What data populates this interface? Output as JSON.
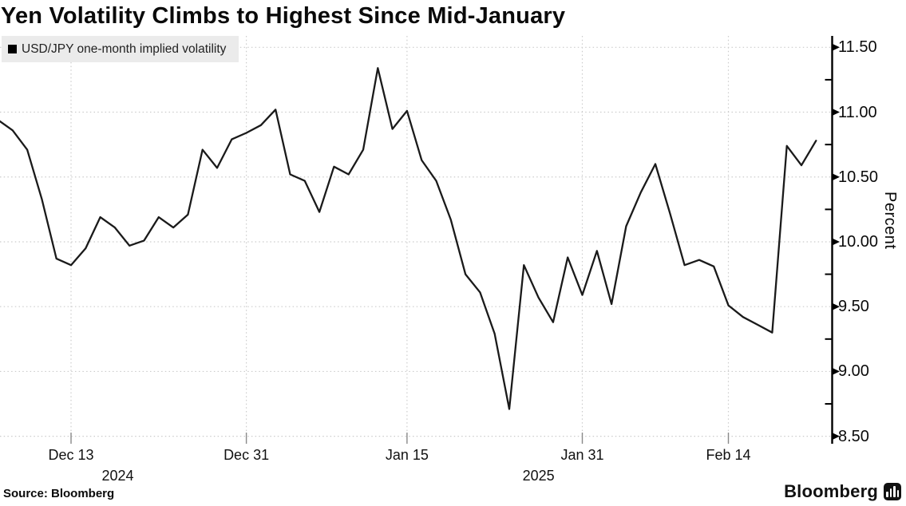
{
  "title": "Yen Volatility Climbs to Highest Since Mid-January",
  "legend": {
    "swatch": "black-square",
    "label": "USD/JPY one-month implied volatility"
  },
  "y_axis": {
    "label": "Percent",
    "tick_labels": [
      "11.50",
      "11.00",
      "10.50",
      "10.00",
      "9.50",
      "9.00",
      "8.50"
    ]
  },
  "x_axis": {
    "tick_labels": [
      "Dec 13",
      "Dec 31",
      "Jan 15",
      "Jan 31",
      "Feb 14"
    ],
    "year_labels": [
      "2024",
      "2025"
    ]
  },
  "footer": {
    "source": "Source: Bloomberg",
    "brand": "Bloomberg",
    "brand_icon": "bar-chart-icon"
  },
  "chart_data": {
    "type": "line",
    "title": "Yen Volatility Climbs to Highest Since Mid-January",
    "series_name": "USD/JPY one-month implied volatility",
    "xlabel": "",
    "ylabel": "Percent",
    "ylim": [
      8.5,
      11.5
    ],
    "y_tick_step": 0.5,
    "y_minor_tick_step": 0.25,
    "grid": true,
    "legend_position": "top-left",
    "line_color": "#1a1a1a",
    "grid_color": "#cccccc",
    "axis_color": "#000000",
    "legend_bg": "#ebebeb",
    "x_start_date": "2024-12-06",
    "x_end_date": "2025-02-24",
    "x_frequency": "business-daily",
    "x_tick_labels": [
      "Dec 13",
      "Dec 31",
      "Jan 15",
      "Jan 31",
      "Feb 14"
    ],
    "x_tick_indices": [
      5,
      17,
      28,
      40,
      50
    ],
    "year_labels": [
      {
        "label": "2024",
        "anchor_index": 8.2
      },
      {
        "label": "2025",
        "anchor_index": 37.0
      }
    ],
    "values": [
      10.94,
      10.86,
      10.71,
      10.33,
      9.87,
      9.82,
      9.95,
      10.19,
      10.11,
      9.97,
      10.01,
      10.19,
      10.11,
      10.21,
      10.71,
      10.57,
      10.79,
      10.84,
      10.9,
      11.02,
      10.52,
      10.47,
      10.23,
      10.58,
      10.52,
      10.71,
      11.34,
      10.87,
      11.01,
      10.63,
      10.47,
      10.17,
      9.75,
      9.61,
      9.29,
      8.71,
      9.82,
      9.57,
      9.38,
      9.88,
      9.59,
      9.93,
      9.52,
      10.12,
      10.38,
      10.6,
      10.22,
      9.82,
      9.86,
      9.81,
      9.51,
      9.42,
      9.36,
      9.3,
      10.74,
      10.59,
      10.78
    ]
  }
}
